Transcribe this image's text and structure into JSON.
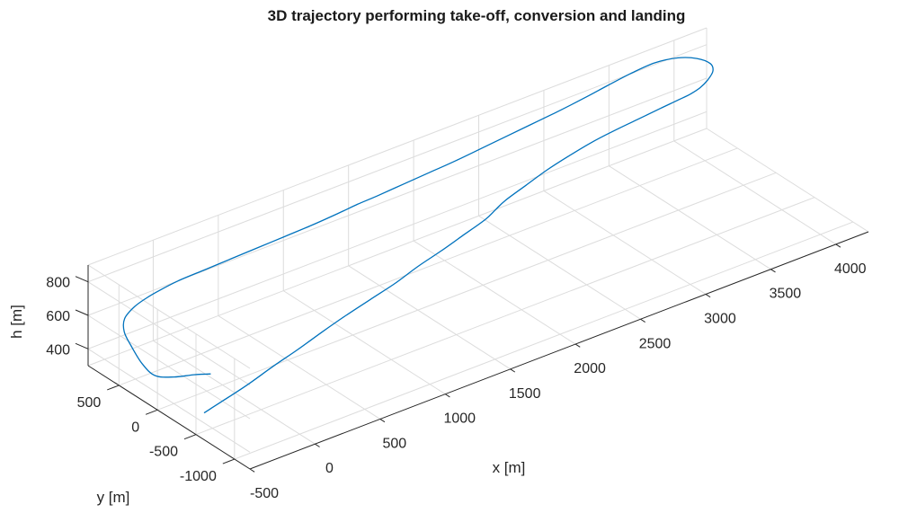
{
  "chart_data": {
    "type": "line",
    "title": "3D trajectory performing take-off, conversion and landing",
    "xlabel": "x [m]",
    "ylabel": "y [m]",
    "zlabel": "h [m]",
    "xlim": [
      -500,
      4250
    ],
    "ylim": [
      -1200,
      900
    ],
    "zlim": [
      300,
      900
    ],
    "x_ticks": [
      "-500",
      "0",
      "500",
      "1000",
      "1500",
      "2000",
      "2500",
      "3000",
      "3500",
      "4000"
    ],
    "y_ticks": [
      "500",
      "0",
      "-500",
      "-1000"
    ],
    "z_ticks": [
      "800",
      "600",
      "400"
    ],
    "grid": true,
    "series": [
      {
        "color": "#0072bd",
        "x": [
          -450,
          -400,
          -300,
          -100,
          100,
          300,
          500,
          700,
          900,
          1100,
          1300,
          1500,
          1700,
          1900,
          2000,
          2100,
          2300,
          2500,
          2700,
          2900,
          3100,
          3300,
          3500,
          3650,
          3750,
          3850,
          3950,
          4050,
          4100,
          4080,
          4000,
          3850,
          3650,
          3450,
          3250,
          3000,
          2800,
          2600,
          2400,
          2200,
          2000,
          1800,
          1600,
          1450,
          1300,
          1100,
          900,
          700,
          500,
          300,
          100,
          -50,
          -150,
          -250,
          -350,
          -400,
          -420,
          -440,
          -430,
          -350,
          -250,
          -150
        ],
        "y": [
          -520,
          -520,
          -520,
          -500,
          -480,
          -470,
          -450,
          -420,
          -400,
          -380,
          -340,
          -300,
          -250,
          -200,
          -160,
          -120,
          -50,
          20,
          80,
          130,
          170,
          200,
          230,
          250,
          270,
          310,
          380,
          480,
          600,
          740,
          850,
          900,
          880,
          840,
          800,
          760,
          740,
          720,
          700,
          690,
          690,
          690,
          690,
          700,
          700,
          700,
          710,
          720,
          730,
          740,
          750,
          740,
          730,
          720,
          680,
          600,
          480,
          300,
          150,
          40,
          -50,
          -100
        ],
        "z": [
          420,
          430,
          450,
          480,
          520,
          560,
          600,
          630,
          660,
          690,
          720,
          740,
          760,
          780,
          795,
          810,
          820,
          830,
          835,
          840,
          840,
          840,
          840,
          840,
          838,
          835,
          830,
          825,
          820,
          815,
          810,
          810,
          810,
          810,
          808,
          805,
          800,
          795,
          790,
          780,
          770,
          760,
          750,
          740,
          730,
          720,
          710,
          700,
          690,
          680,
          670,
          660,
          650,
          630,
          600,
          560,
          520,
          470,
          440,
          440,
          450,
          440
        ]
      }
    ]
  }
}
